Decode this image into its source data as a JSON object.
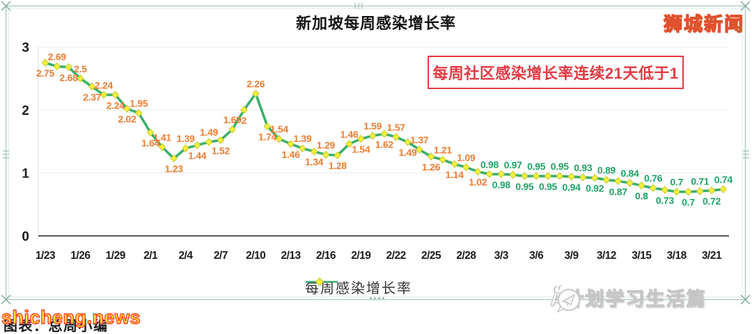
{
  "chart_data": {
    "type": "line",
    "title": "新加坡每周感染增长率",
    "legend": "每周感染增长率",
    "x_tick_labels": [
      "1/23",
      "1/26",
      "1/29",
      "2/1",
      "2/4",
      "2/7",
      "2/10",
      "2/13",
      "2/16",
      "2/19",
      "2/22",
      "2/25",
      "2/28",
      "3/3",
      "3/6",
      "3/9",
      "3/12",
      "3/15",
      "3/18",
      "3/21"
    ],
    "x_tick_every": 3,
    "values": [
      2.75,
      2.69,
      2.68,
      2.5,
      2.37,
      2.24,
      2.24,
      2.02,
      1.95,
      1.64,
      1.41,
      1.23,
      1.39,
      1.44,
      1.49,
      1.52,
      1.69,
      2,
      2.26,
      1.74,
      1.54,
      1.46,
      1.39,
      1.34,
      1.29,
      1.28,
      1.46,
      1.54,
      1.59,
      1.62,
      1.57,
      1.49,
      1.37,
      1.26,
      1.21,
      1.14,
      1.09,
      1.02,
      0.98,
      0.98,
      0.97,
      0.95,
      0.95,
      0.95,
      0.95,
      0.94,
      0.93,
      0.92,
      0.89,
      0.87,
      0.84,
      0.8,
      0.76,
      0.73,
      0.7,
      0.7,
      0.71,
      0.72,
      0.74
    ],
    "label_positions": [
      "b",
      "a",
      "b",
      "a",
      "b",
      "a",
      "b",
      "b",
      "a",
      "b",
      "a",
      "b",
      "a",
      "b",
      "a",
      "b",
      "a",
      "b",
      "a",
      "b",
      "a",
      "b",
      "a",
      "b",
      "a",
      "b",
      "a",
      "b",
      "a",
      "b",
      "a",
      "b",
      "a",
      "b",
      "a",
      "b",
      "a",
      "b",
      "a",
      "b",
      "a",
      "b",
      "a",
      "b",
      "a",
      "b",
      "a",
      "b",
      "a",
      "b",
      "a",
      "b",
      "a",
      "b",
      "a",
      "b",
      "a",
      "b",
      "a"
    ],
    "y_ticks": [
      3,
      2,
      1,
      0
    ],
    "ylim": [
      0,
      3
    ],
    "grid": "horizontal-light",
    "legend_position": "bottom-center",
    "below_threshold": 1,
    "colors": {
      "line": "#3BAF6C",
      "marker_fill": "#F3EF3E",
      "marker_stroke": "#C4C92B",
      "label_high": "#ED7D31",
      "label_low": "#21A366",
      "axis": "#595959"
    }
  },
  "annotation": {
    "text": "每周社区感染增长率连续21天低于1",
    "color": "#E23B43"
  },
  "brand": {
    "text": "狮城新闻"
  },
  "watermarks": {
    "overlay": "shicheng.news",
    "caption": "图表：总周小编",
    "publisher": "A计划学习生活篇"
  }
}
